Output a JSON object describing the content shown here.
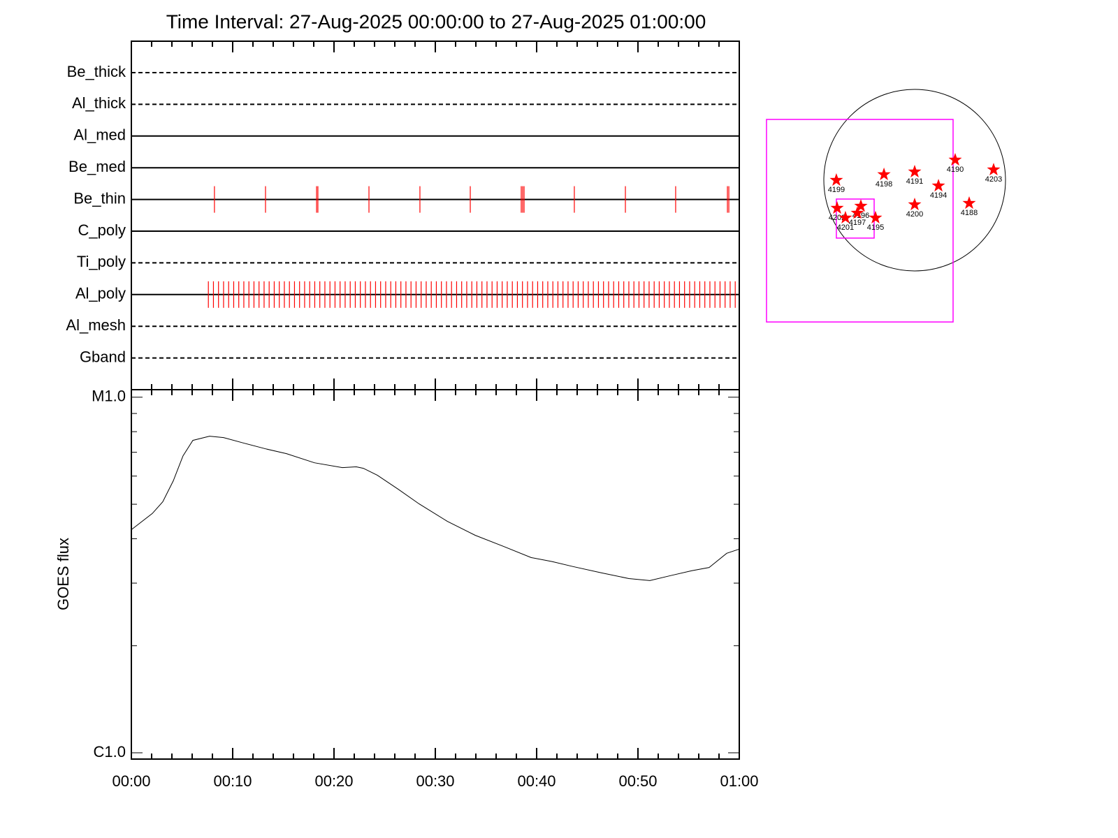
{
  "chart_data": [
    {
      "type": "timeline",
      "title": "Time Interval: 27-Aug-2025 00:00:00 to 27-Aug-2025 01:00:00",
      "color": "#ff0000",
      "xlim": [
        0,
        60
      ],
      "xticks": [
        0,
        10,
        20,
        30,
        40,
        50,
        60
      ],
      "xminorticks": [
        2,
        4,
        6,
        8,
        12,
        14,
        16,
        18,
        22,
        24,
        26,
        28,
        32,
        34,
        36,
        38,
        42,
        44,
        46,
        48,
        52,
        54,
        56,
        58
      ],
      "rows": [
        {
          "label": "Be_thick",
          "style": "dashed",
          "x": []
        },
        {
          "label": "Al_thick",
          "style": "dashed",
          "x": []
        },
        {
          "label": "Al_med",
          "style": "solid",
          "x": []
        },
        {
          "label": "Be_med",
          "style": "solid",
          "x": []
        },
        {
          "label": "Be_thin",
          "style": "solid",
          "x": [
            8.2,
            13.24,
            18.28,
            18.41,
            23.45,
            28.48,
            33.45,
            38.48,
            38.62,
            38.76,
            43.72,
            48.76,
            53.72,
            58.83,
            58.97
          ]
        },
        {
          "label": "C_poly",
          "style": "solid",
          "x": []
        },
        {
          "label": "Ti_poly",
          "style": "dashed",
          "x": []
        },
        {
          "label": "Al_poly",
          "style": "solid",
          "x": [
            7.6,
            8.1,
            8.6,
            9.1,
            9.6,
            10.1,
            10.6,
            11.1,
            11.6,
            12.1,
            12.6,
            13.1,
            13.6,
            14.1,
            14.6,
            15.1,
            15.6,
            16.1,
            16.6,
            17.1,
            17.6,
            18.1,
            18.6,
            19.1,
            19.6,
            20.1,
            20.6,
            21.1,
            21.6,
            22.1,
            22.6,
            23.1,
            23.6,
            24.1,
            24.6,
            25.1,
            25.6,
            26.1,
            26.6,
            27.1,
            27.6,
            28.1,
            28.6,
            29.1,
            29.6,
            30.1,
            30.6,
            31.1,
            31.6,
            32.1,
            32.6,
            33.1,
            33.6,
            34.1,
            34.6,
            35.1,
            35.6,
            36.1,
            36.6,
            37.1,
            37.6,
            38.1,
            38.6,
            39.1,
            39.6,
            40.1,
            40.6,
            41.1,
            41.6,
            42.1,
            42.6,
            43.1,
            43.6,
            44.1,
            44.6,
            45.1,
            45.6,
            46.1,
            46.6,
            47.1,
            47.6,
            48.1,
            48.6,
            49.1,
            49.6,
            50.1,
            50.6,
            51.1,
            51.6,
            52.1,
            52.6,
            53.1,
            53.6,
            54.1,
            54.6,
            55.1,
            55.6,
            56.1,
            56.6,
            57.1,
            57.6,
            58.1,
            58.6,
            59.1,
            59.6
          ]
        },
        {
          "label": "Al_mesh",
          "style": "dashed",
          "x": []
        },
        {
          "label": "Gband",
          "style": "dashed",
          "x": []
        }
      ]
    },
    {
      "type": "line",
      "y_label": "GOES flux",
      "color": "#000000",
      "log_y": true,
      "x": [
        0,
        2.07,
        3.1,
        4.14,
        5.1,
        6.07,
        7.72,
        9.1,
        11.17,
        13.24,
        15.31,
        18.07,
        20.83,
        22.21,
        22.9,
        24.28,
        26.34,
        28.41,
        31.17,
        33.93,
        36.69,
        39.45,
        41.52,
        43.59,
        46.34,
        49.1,
        51.17,
        53.24,
        55.31,
        57.03,
        58.76,
        60
      ],
      "values": [
        4.24e-06,
        4.71e-06,
        5.08e-06,
        5.82e-06,
        6.84e-06,
        7.56e-06,
        7.77e-06,
        7.7e-06,
        7.42e-06,
        7.16e-06,
        6.94e-06,
        6.54e-06,
        6.34e-06,
        6.37e-06,
        6.31e-06,
        6.03e-06,
        5.51e-06,
        5.01e-06,
        4.48e-06,
        4.09e-06,
        3.81e-06,
        3.54e-06,
        3.45e-06,
        3.34e-06,
        3.21e-06,
        3.09e-06,
        3.05e-06,
        3.15e-06,
        3.25e-06,
        3.32e-06,
        3.64e-06,
        3.74e-06
      ],
      "xlim": [
        0,
        60
      ],
      "xticks": [
        {
          "value": 0,
          "label": "00:00"
        },
        {
          "value": 10,
          "label": "00:10"
        },
        {
          "value": 20,
          "label": "00:20"
        },
        {
          "value": 30,
          "label": "00:30"
        },
        {
          "value": 40,
          "label": "00:40"
        },
        {
          "value": 50,
          "label": "00:50"
        },
        {
          "value": 60,
          "label": "01:00"
        }
      ],
      "xminorticks": [
        2,
        4,
        6,
        8,
        12,
        14,
        16,
        18,
        22,
        24,
        26,
        28,
        32,
        34,
        36,
        38,
        42,
        44,
        46,
        48,
        52,
        54,
        56,
        58
      ],
      "ylim": [
        9.6e-07,
        1.05e-05
      ],
      "yticks": [
        {
          "value": 1e-06,
          "label": "C1.0"
        },
        {
          "value": 1e-05,
          "label": "M1.0"
        }
      ],
      "yminorticks": [
        2e-06,
        3e-06,
        4e-06,
        5e-06,
        6e-06,
        7e-06,
        8e-06,
        9e-06
      ]
    },
    {
      "type": "scatter",
      "color": "#ff0000",
      "box_color": "#ff00ff",
      "labels": [
        "4199",
        "4198",
        "4191",
        "4190",
        "4203",
        "4194",
        "4188",
        "4200",
        "4202",
        "4201",
        "4196",
        "4197",
        "4195"
      ],
      "x": [
        -0.862,
        -0.338,
        0,
        0.446,
        0.869,
        0.262,
        0.6,
        0,
        -0.854,
        -0.762,
        -0.592,
        -0.631,
        -0.431
      ],
      "values": [
        0,
        0.062,
        0.092,
        0.223,
        0.115,
        -0.062,
        -0.254,
        -0.269,
        -0.308,
        -0.415,
        -0.285,
        -0.362,
        -0.415
      ],
      "boxes": [
        [
          -1.631,
          0.669,
          0.423,
          -1.562
        ],
        [
          -0.862,
          -0.208,
          -0.446,
          -0.638
        ]
      ]
    }
  ]
}
